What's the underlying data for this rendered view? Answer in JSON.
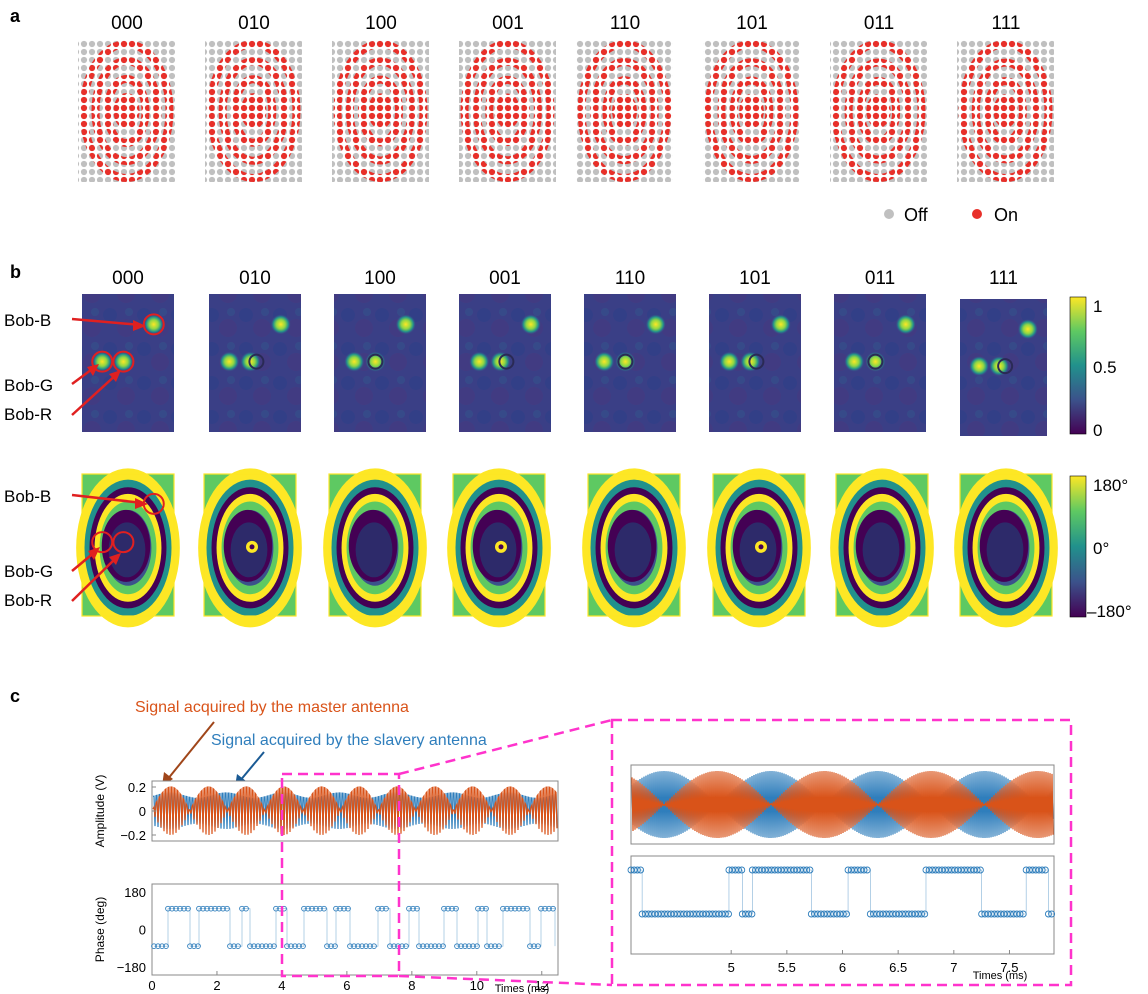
{
  "panels": {
    "a": "a",
    "b": "b",
    "c": "c"
  },
  "codes": [
    "000",
    "010",
    "100",
    "001",
    "110",
    "101",
    "011",
    "111"
  ],
  "legend": {
    "off": "Off",
    "on": "On"
  },
  "legend_colors": {
    "off": "#c0c0c0",
    "on": "#e8302a"
  },
  "bob_labels": [
    "Bob-B",
    "Bob-G",
    "Bob-R"
  ],
  "colorbar_amplitude": {
    "ticks": [
      "1",
      "0.5",
      "0"
    ]
  },
  "colorbar_phase": {
    "ticks": [
      "180°",
      "0°",
      "–180°"
    ]
  },
  "colormap": [
    "#440154",
    "#3b528b",
    "#21918c",
    "#5ec962",
    "#fde725"
  ],
  "signal_labels": {
    "master": "Signal acquired by the master antenna",
    "slave": "Signal acquired by the slavery antenna"
  },
  "series_colors": {
    "master": "#d95319",
    "slave": "#2f7ebc",
    "highlight": "#ff33cc"
  },
  "chart_data": [
    {
      "type": "line",
      "ylabel": "Amplitude (V)",
      "x_range": [
        0,
        12.5
      ],
      "ylim": [
        -0.2,
        0.2
      ],
      "yticks": [
        "0.2",
        "0",
        "−0.2"
      ],
      "series": [
        {
          "name": "Signal acquired by the master antenna",
          "amplitude": 0.2
        },
        {
          "name": "Signal acquired by the slavery antenna",
          "amplitude": 0.15
        }
      ]
    },
    {
      "type": "scatter",
      "ylabel": "Phase (deg)",
      "xlabel": "Times (ms)",
      "x_range": [
        0,
        12.5
      ],
      "ylim": [
        -180,
        180
      ],
      "yticks": [
        "180",
        "0",
        "−180"
      ],
      "xticks": [
        "0",
        "2",
        "4",
        "6",
        "8",
        "10",
        "12"
      ],
      "levels_deg": [
        100,
        -80
      ]
    },
    {
      "type": "line",
      "x_range": [
        4.1,
        7.9
      ],
      "series": [
        {
          "name": "Signal acquired by the master antenna"
        },
        {
          "name": "Signal acquired by the slavery antenna"
        }
      ]
    },
    {
      "type": "scatter",
      "xlabel": "Times (ms)",
      "x_range": [
        4.1,
        7.9
      ],
      "xticks": [
        "5",
        "5.5",
        "6",
        "6.5",
        "7",
        "7.5"
      ],
      "segments": [
        {
          "from": 4.1,
          "to": 4.2,
          "level": "high"
        },
        {
          "from": 4.2,
          "to": 4.98,
          "level": "low"
        },
        {
          "from": 4.98,
          "to": 5.1,
          "level": "high"
        },
        {
          "from": 5.1,
          "to": 5.19,
          "level": "low"
        },
        {
          "from": 5.19,
          "to": 5.72,
          "level": "high"
        },
        {
          "from": 5.72,
          "to": 6.05,
          "level": "low"
        },
        {
          "from": 6.05,
          "to": 6.25,
          "level": "high"
        },
        {
          "from": 6.25,
          "to": 6.75,
          "level": "low"
        },
        {
          "from": 6.75,
          "to": 7.25,
          "level": "high"
        },
        {
          "from": 7.25,
          "to": 7.65,
          "level": "low"
        },
        {
          "from": 7.65,
          "to": 7.85,
          "level": "high"
        },
        {
          "from": 7.85,
          "to": 7.9,
          "level": "low"
        }
      ]
    }
  ]
}
